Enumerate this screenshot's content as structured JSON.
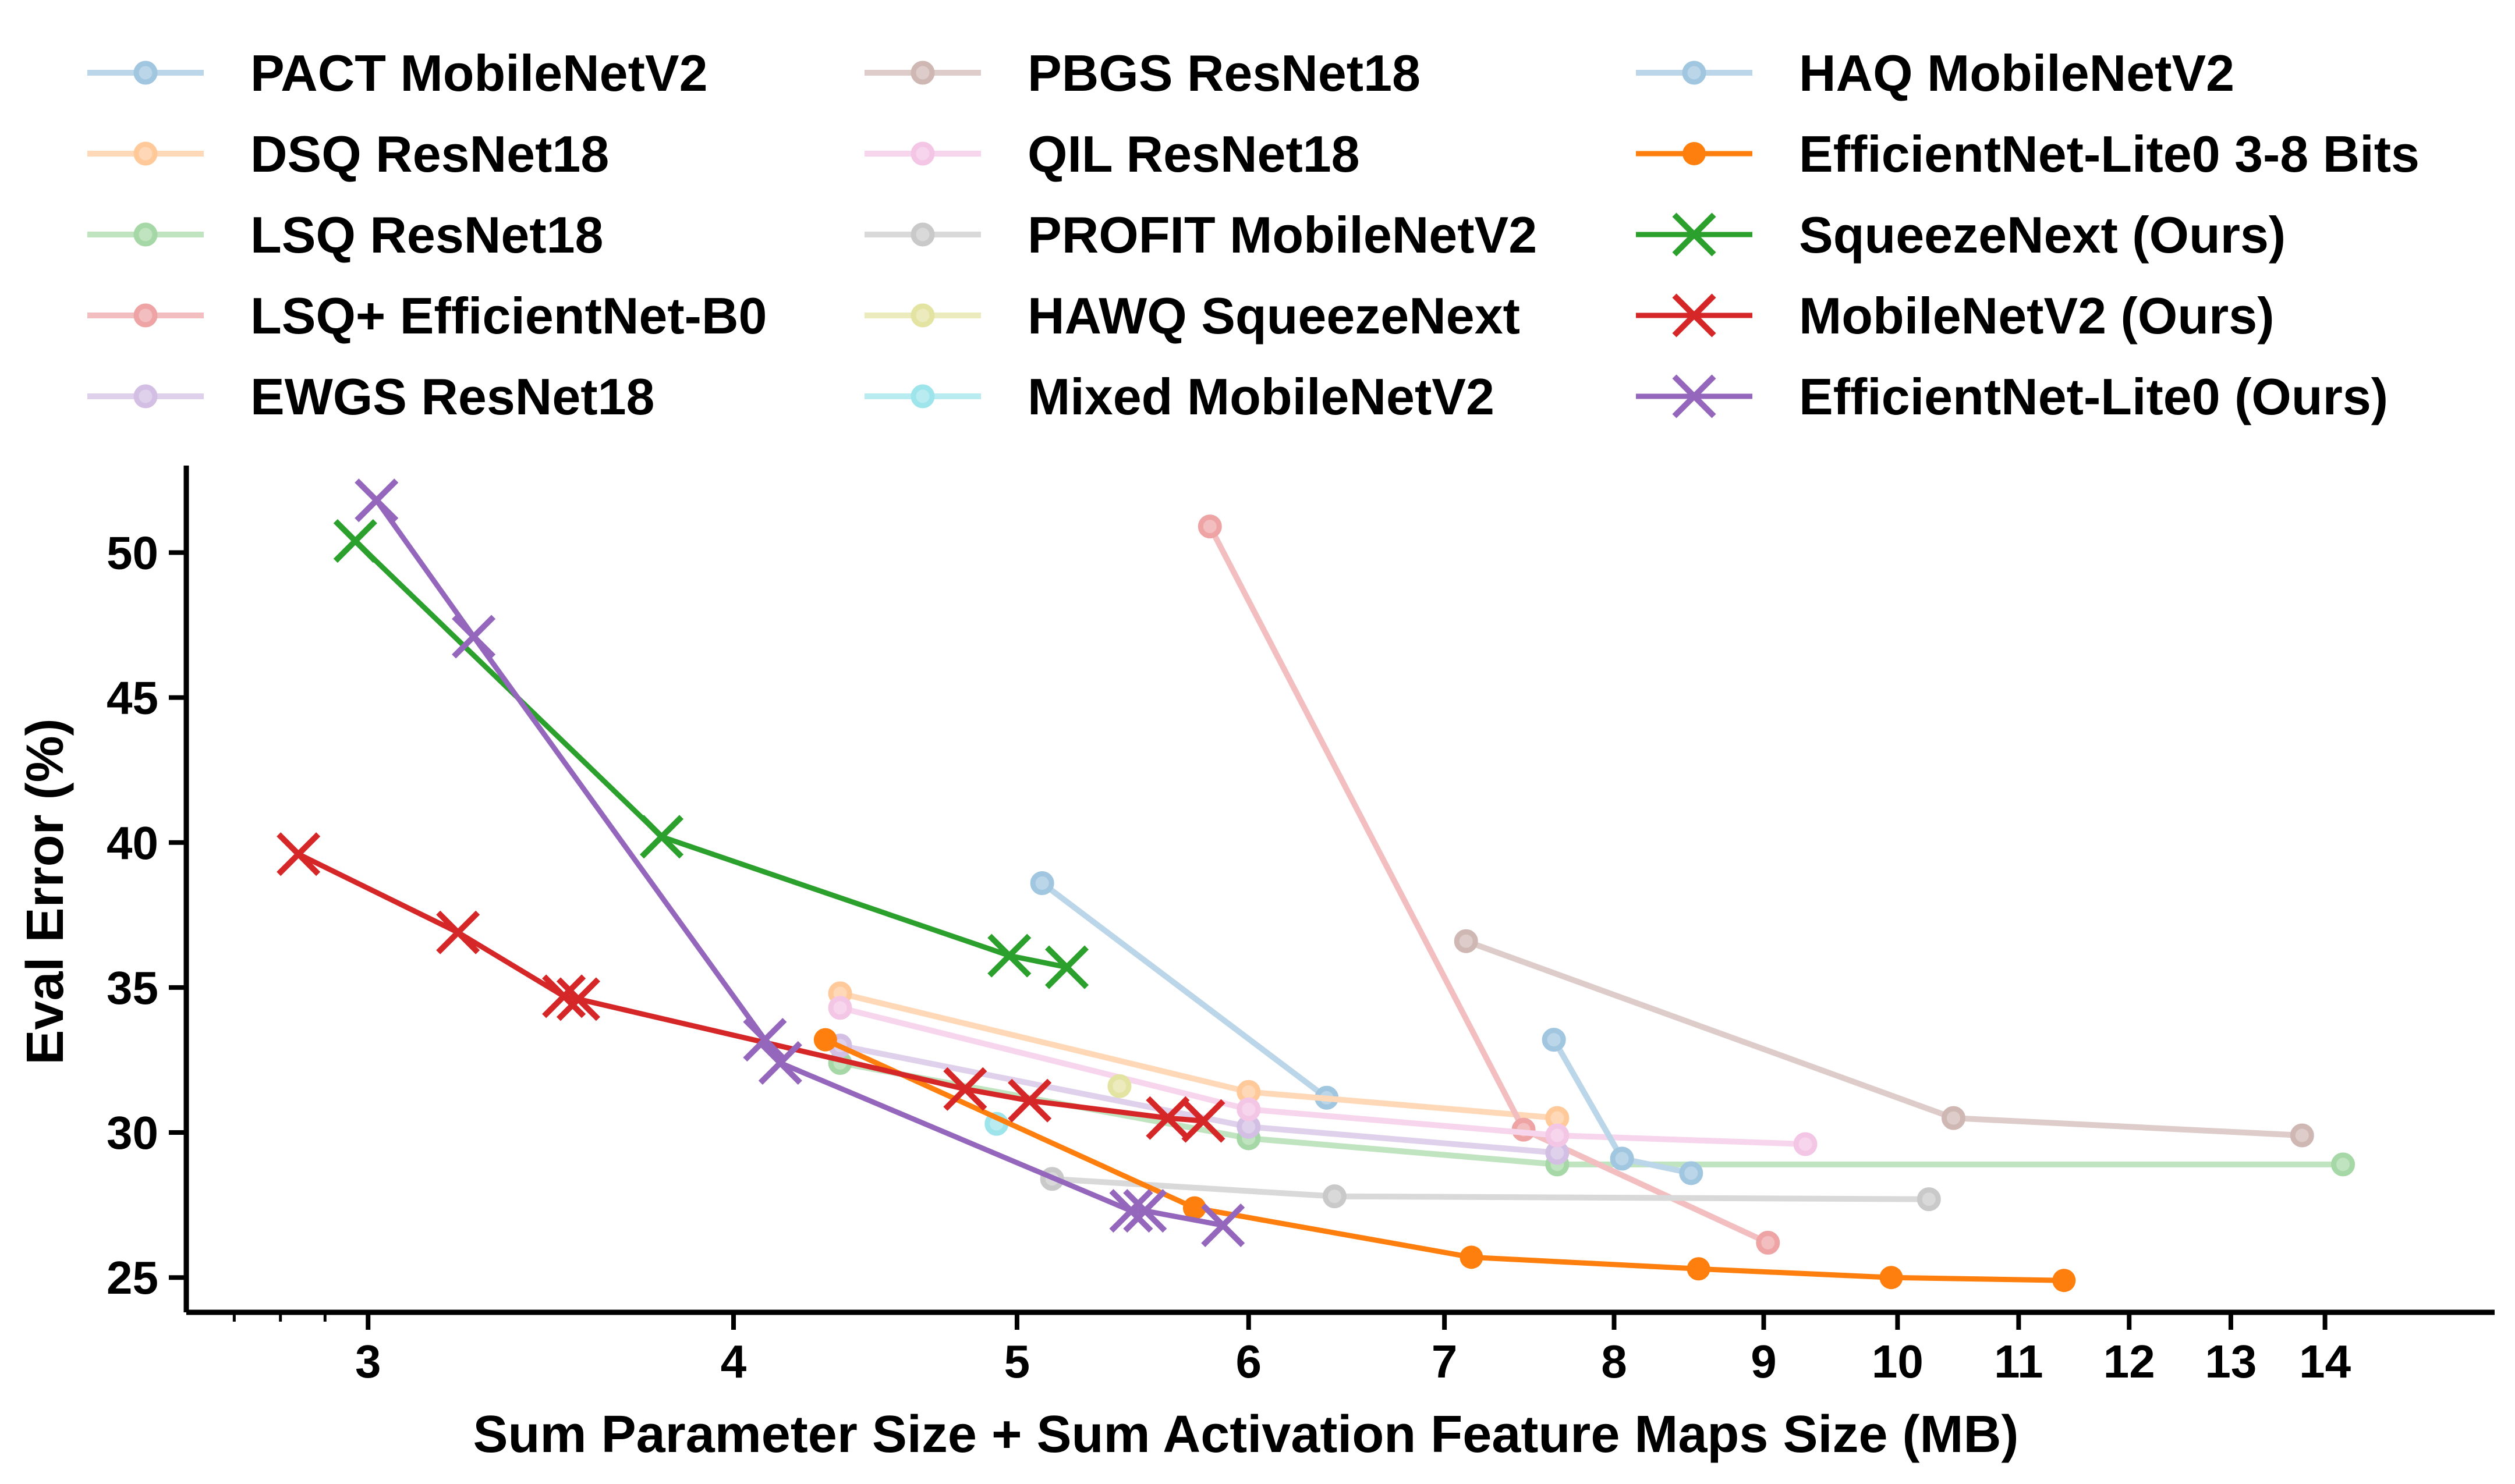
{
  "chart_data": {
    "type": "line",
    "title": "",
    "xlabel": "Sum Parameter Size + Sum Activation Feature Maps Size (MB)",
    "ylabel": "Eval Error (%)",
    "xscale": "log",
    "xlim": [
      2.6,
      16.0
    ],
    "ylim": [
      23.8,
      53.0
    ],
    "xticks": [
      3,
      4,
      5,
      6,
      7,
      8,
      9,
      10,
      11,
      12,
      13,
      14
    ],
    "yticks": [
      25,
      30,
      35,
      40,
      45,
      50
    ],
    "legend_position": "top",
    "series": [
      {
        "name": "PACT MobileNetV2",
        "color": "#1f77b4",
        "marker": "o",
        "faded": true,
        "x": [
          5.1,
          6.38
        ],
        "y": [
          38.6,
          31.2
        ]
      },
      {
        "name": "DSQ ResNet18",
        "color": "#ff7f0e",
        "marker": "o",
        "faded": true,
        "x": [
          4.35,
          6.0,
          7.65
        ],
        "y": [
          34.8,
          31.4,
          30.5
        ]
      },
      {
        "name": "LSQ ResNet18",
        "color": "#2ca02c",
        "marker": "o",
        "faded": true,
        "x": [
          4.35,
          6.0,
          7.65,
          14.2
        ],
        "y": [
          32.4,
          29.8,
          28.9,
          28.9
        ]
      },
      {
        "name": "LSQ+ EfficientNet-B0",
        "color": "#d62728",
        "marker": "o",
        "faded": true,
        "x": [
          5.82,
          7.45,
          9.03
        ],
        "y": [
          50.9,
          30.1,
          26.2
        ]
      },
      {
        "name": "EWGS ResNet18",
        "color": "#9467bd",
        "marker": "o",
        "faded": true,
        "x": [
          4.35,
          6.0,
          7.65
        ],
        "y": [
          33.0,
          30.2,
          29.3
        ]
      },
      {
        "name": "PBGS ResNet18",
        "color": "#8c564b",
        "marker": "o",
        "faded": true,
        "x": [
          7.12,
          10.45,
          13.75
        ],
        "y": [
          36.6,
          30.5,
          29.9
        ]
      },
      {
        "name": "QIL ResNet18",
        "color": "#e377c2",
        "marker": "o",
        "faded": true,
        "x": [
          4.35,
          6.0,
          7.65,
          9.3
        ],
        "y": [
          34.3,
          30.8,
          29.9,
          29.6
        ]
      },
      {
        "name": "PROFIT MobileNetV2",
        "color": "#7f7f7f",
        "marker": "o",
        "faded": true,
        "x": [
          5.14,
          6.42,
          10.25
        ],
        "y": [
          28.4,
          27.8,
          27.7
        ]
      },
      {
        "name": "HAWQ SqueezeNext",
        "color": "#bcbd22",
        "marker": "o",
        "faded": true,
        "x": [
          5.42
        ],
        "y": [
          31.6
        ]
      },
      {
        "name": "Mixed MobileNetV2",
        "color": "#17becf",
        "marker": "o",
        "faded": true,
        "x": [
          4.92
        ],
        "y": [
          30.3
        ]
      },
      {
        "name": "HAQ MobileNetV2",
        "color": "#1f77b4",
        "marker": "o",
        "faded": true,
        "x": [
          7.63,
          8.05,
          8.5
        ],
        "y": [
          33.2,
          29.1,
          28.6
        ]
      },
      {
        "name": "EfficientNet-Lite0 3-8 Bits",
        "color": "#ff7f0e",
        "marker": "o",
        "faded": false,
        "x": [
          4.3,
          5.75,
          7.15,
          8.55,
          9.95,
          11.4
        ],
        "y": [
          33.2,
          27.4,
          25.7,
          25.3,
          25.0,
          24.9
        ]
      },
      {
        "name": "SqueezeNext (Ours)",
        "color": "#2ca02c",
        "marker": "x",
        "faded": false,
        "x": [
          2.97,
          3.78,
          4.97,
          5.2
        ],
        "y": [
          50.4,
          40.2,
          36.1,
          35.7
        ]
      },
      {
        "name": "MobileNetV2 (Ours)",
        "color": "#d62728",
        "marker": "x",
        "faded": false,
        "x": [
          2.84,
          3.22,
          3.5,
          3.54,
          4.8,
          5.05,
          5.63,
          5.79
        ],
        "y": [
          39.6,
          36.9,
          34.7,
          34.6,
          31.5,
          31.1,
          30.5,
          30.4
        ]
      },
      {
        "name": "EfficientNet-Lite0 (Ours)",
        "color": "#9467bd",
        "marker": "x",
        "faded": false,
        "x": [
          3.02,
          3.26,
          4.1,
          4.15,
          5.47,
          5.53,
          5.88
        ],
        "y": [
          51.8,
          47.1,
          33.2,
          32.4,
          27.3,
          27.3,
          26.8
        ]
      }
    ]
  }
}
